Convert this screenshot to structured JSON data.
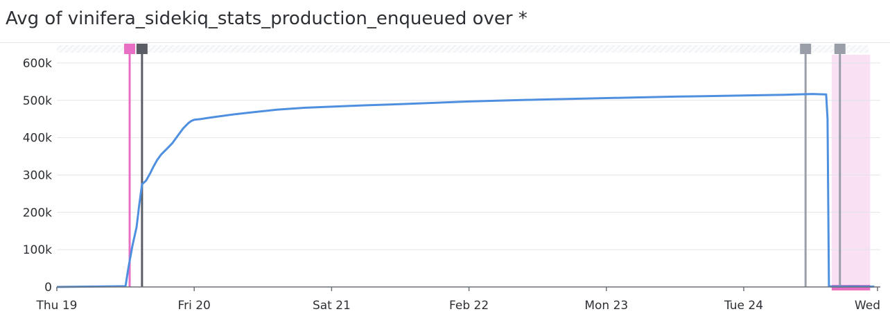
{
  "widget": {
    "title": "Avg of vinifera_sidekiq_stats_production_enqueued over *"
  },
  "colors": {
    "series": "#4f8fe0",
    "grid": "#e1e4e8",
    "axis": "#6b7078",
    "deploy_marker": "#5a5d66",
    "pink_marker": "#e86fc4",
    "gray_marker": "#9a9ea8",
    "highlight_band": "#f9e0f3"
  },
  "chart_data": {
    "type": "line",
    "title": "Avg of vinifera_sidekiq_stats_production_enqueued over *",
    "xlabel": "",
    "ylabel": "",
    "x_tick_labels": [
      "Thu 19",
      "Fri 20",
      "Sat 21",
      "Feb 22",
      "Mon 23",
      "Tue 24",
      "Wed"
    ],
    "y_tick_labels": [
      "0",
      "100k",
      "200k",
      "300k",
      "400k",
      "500k",
      "600k"
    ],
    "y_ticks": [
      0,
      100000,
      200000,
      300000,
      400000,
      500000,
      600000
    ],
    "xlim": [
      0,
      6
    ],
    "ylim": [
      0,
      650000
    ],
    "grid": true,
    "series": [
      {
        "values_x": [
          0,
          0.5,
          0.52,
          0.55,
          0.58,
          0.6,
          0.62,
          0.65,
          0.68,
          0.7,
          0.73,
          0.76,
          0.8,
          0.84,
          0.88,
          0.92,
          0.96,
          0.98,
          1.0,
          1.05,
          1.1,
          1.2,
          1.3,
          1.4,
          1.5,
          1.6,
          1.8,
          2.0,
          2.2,
          2.5,
          3.0,
          3.5,
          4.0,
          4.5,
          5.0,
          5.3,
          5.5,
          5.6,
          5.61,
          5.62,
          5.65,
          5.8,
          5.95
        ],
        "values_y": [
          0,
          2000,
          50000,
          110000,
          160000,
          220000,
          275000,
          285000,
          305000,
          320000,
          340000,
          355000,
          370000,
          385000,
          405000,
          425000,
          440000,
          445000,
          448000,
          450000,
          453000,
          458000,
          463000,
          467000,
          471000,
          475000,
          480000,
          483000,
          486000,
          490000,
          497000,
          502000,
          506000,
          510000,
          513000,
          515000,
          517000,
          516000,
          450000,
          2000,
          1000,
          1500,
          1000
        ]
      }
    ],
    "markers": [
      {
        "x": 0.53,
        "kind": "pink"
      },
      {
        "x": 0.62,
        "kind": "deploy"
      },
      {
        "x": 5.45,
        "kind": "gray"
      },
      {
        "x": 5.7,
        "kind": "gray"
      }
    ],
    "highlight_range": [
      5.64,
      5.92
    ]
  }
}
